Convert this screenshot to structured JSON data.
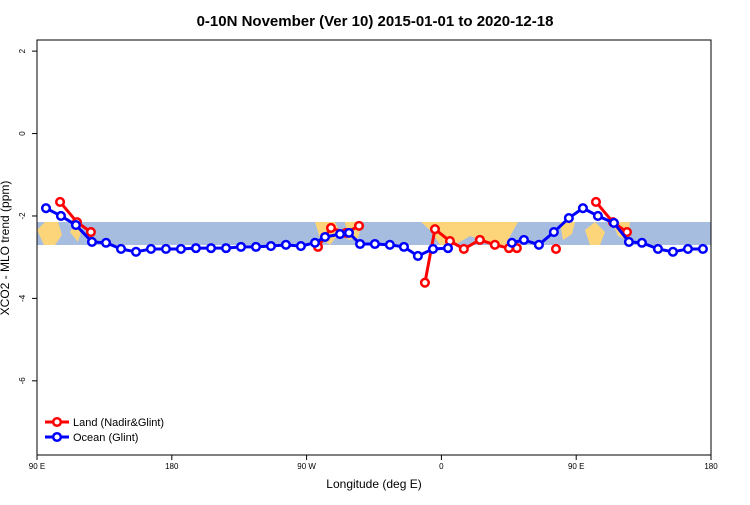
{
  "chart_data": {
    "type": "line",
    "title": "0-10N November (Ver 10)   2015-01-01 to 2020-12-18",
    "xlabel": "Longitude (deg E)",
    "ylabel": "XCO2 - MLO trend (ppm)",
    "xlim": [
      90,
      540
    ],
    "ylim": [
      -7.8,
      2.27
    ],
    "xticks": [
      {
        "value": 90,
        "label": "90 E"
      },
      180,
      {
        "value": 270,
        "label": "90 W"
      },
      {
        "value": 360,
        "label": "0"
      },
      {
        "value": 450,
        "label": "90 E"
      },
      {
        "value": 540,
        "label": "180"
      }
    ],
    "yticks": [
      2,
      0,
      -2,
      -4,
      -6
    ],
    "legend": "bottom-left",
    "series": [
      {
        "name": "Land (Nadir&Glint)",
        "color": "#ff0000",
        "x": [
          105.4,
          116.7,
          126.0,
          200,
          277.6,
          286.3,
          296.3,
          305.0,
          330,
          349.0,
          355.7,
          365.7,
          375.0,
          385.7,
          395.7,
          405.1,
          410.4,
          420,
          436.5,
          450,
          463.2,
          474.5,
          483.9
        ],
        "values": [
          -1.66,
          -2.15,
          -2.39,
          null,
          -2.75,
          -2.29,
          -2.41,
          -2.24,
          null,
          -3.62,
          -2.32,
          -2.61,
          -2.8,
          -2.58,
          -2.7,
          -2.78,
          -2.78,
          null,
          -2.8,
          null,
          -1.66,
          -2.15,
          -2.39
        ]
      },
      {
        "name": "Ocean (Glint)",
        "color": "#0000ff",
        "x": [
          96.0,
          106.0,
          116.0,
          126.7,
          136.1,
          146.1,
          156.1,
          166.1,
          176.1,
          186.1,
          196.1,
          206.2,
          216.2,
          226.2,
          236.2,
          246.2,
          256.2,
          266.2,
          275.6,
          282.3,
          292.3,
          298.3,
          305.7,
          315.6,
          325.6,
          335.0,
          344.3,
          354.4,
          364.4,
          385,
          407.1,
          415.1,
          425.1,
          435.1,
          445.1,
          454.5,
          464.5,
          475.2,
          485.2,
          493.9,
          504.6,
          514.6,
          524.6,
          534.6
        ],
        "values": [
          -1.81,
          -2.0,
          -2.22,
          -2.63,
          -2.65,
          -2.8,
          -2.87,
          -2.8,
          -2.8,
          -2.8,
          -2.78,
          -2.78,
          -2.78,
          -2.75,
          -2.75,
          -2.73,
          -2.7,
          -2.73,
          -2.65,
          -2.51,
          -2.44,
          -2.41,
          -2.68,
          -2.68,
          -2.7,
          -2.75,
          -2.97,
          -2.8,
          -2.78,
          null,
          -2.65,
          -2.58,
          -2.7,
          -2.39,
          -2.05,
          -1.81,
          -2.0,
          -2.17,
          -2.63,
          -2.65,
          -2.8,
          -2.87,
          -2.8,
          -2.8
        ]
      }
    ]
  }
}
